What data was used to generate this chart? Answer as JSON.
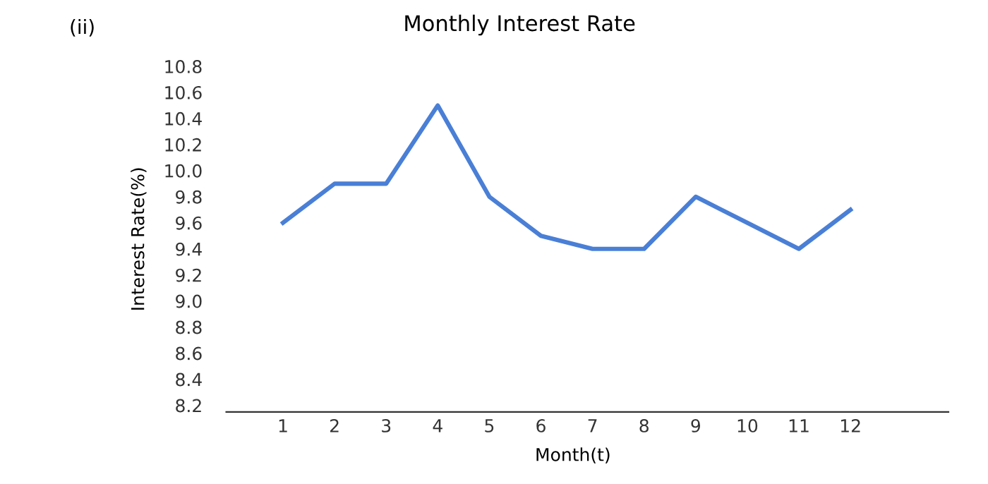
{
  "chart_data": {
    "type": "line",
    "title": "Monthly Interest Rate",
    "xlabel": "Month(t)",
    "ylabel": "Interest Rate(%)",
    "annotations": [
      "(ii)"
    ],
    "x": [
      1,
      2,
      3,
      4,
      5,
      6,
      7,
      8,
      9,
      10,
      11,
      12
    ],
    "series": [
      {
        "color": "#4a7fd6",
        "values": [
          9.6,
          9.9,
          9.9,
          10.5,
          9.8,
          9.5,
          9.4,
          9.4,
          9.8,
          9.6,
          9.4,
          9.7
        ]
      }
    ],
    "xlim": [
      -0.1,
      13.9
    ],
    "xticks": [
      1,
      2,
      3,
      4,
      5,
      6,
      7,
      8,
      9,
      10,
      11,
      12
    ],
    "ylim": [
      8.15,
      10.8
    ],
    "yticks": [
      {
        "value": 8.2,
        "label": "8.2"
      },
      {
        "value": 8.4,
        "label": "8.4"
      },
      {
        "value": 8.6,
        "label": "8.6"
      },
      {
        "value": 8.8,
        "label": "8.8"
      },
      {
        "value": 9.0,
        "label": "9.0"
      },
      {
        "value": 9.2,
        "label": "9.2"
      },
      {
        "value": 9.4,
        "label": "9.4"
      },
      {
        "value": 9.6,
        "label": "9.6"
      },
      {
        "value": 9.8,
        "label": "9.8"
      },
      {
        "value": 10.0,
        "label": "10.0"
      },
      {
        "value": 10.2,
        "label": "10.2"
      },
      {
        "value": 10.4,
        "label": "10.4"
      },
      {
        "value": 10.6,
        "label": "10.6"
      },
      {
        "value": 10.8,
        "label": "10.8"
      }
    ],
    "grid": false,
    "legend": false,
    "marker": "none",
    "line_style": "solid"
  }
}
